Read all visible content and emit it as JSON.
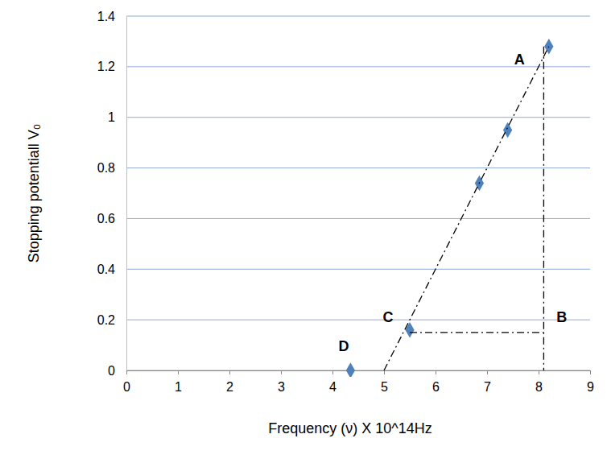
{
  "chart_data": {
    "type": "scatter",
    "x_label": "Frequency (ν) X 10^14Hz",
    "y_label": "Stopping potentiall V₀",
    "xlim": [
      0,
      9
    ],
    "xticks": [
      0,
      1,
      2,
      3,
      4,
      5,
      6,
      7,
      8,
      9
    ],
    "ylim": [
      0,
      1.4
    ],
    "yticks": [
      0,
      0.2,
      0.4,
      0.6,
      0.8,
      1,
      1.2,
      1.4
    ],
    "grid": true,
    "series": [
      {
        "type": "scatter",
        "color": "#4f81bd",
        "marker": "diamond",
        "x": [
          4.35,
          5.5,
          6.85,
          7.4,
          8.2
        ],
        "values": [
          0,
          0.16,
          0.74,
          0.95,
          1.28
        ]
      },
      {
        "type": "line",
        "color": "#000000",
        "line_style": "dashdot",
        "x": [
          5.0,
          8.2
        ],
        "values": [
          0,
          1.28
        ]
      },
      {
        "type": "line",
        "color": "#000000",
        "line_style": "dashdot",
        "x": [
          8.1,
          8.1
        ],
        "values": [
          1.28,
          0
        ]
      },
      {
        "type": "line",
        "color": "#000000",
        "line_style": "dashdot",
        "x": [
          5.5,
          8.1
        ],
        "values": [
          0.15,
          0.15
        ]
      }
    ],
    "annotations": [
      {
        "text": "A",
        "x": 7.63,
        "y": 1.225
      },
      {
        "text": "B",
        "x": 8.45,
        "y": 0.205
      },
      {
        "text": "C",
        "x": 5.08,
        "y": 0.205
      },
      {
        "text": "D",
        "x": 4.22,
        "y": 0.09
      }
    ]
  }
}
